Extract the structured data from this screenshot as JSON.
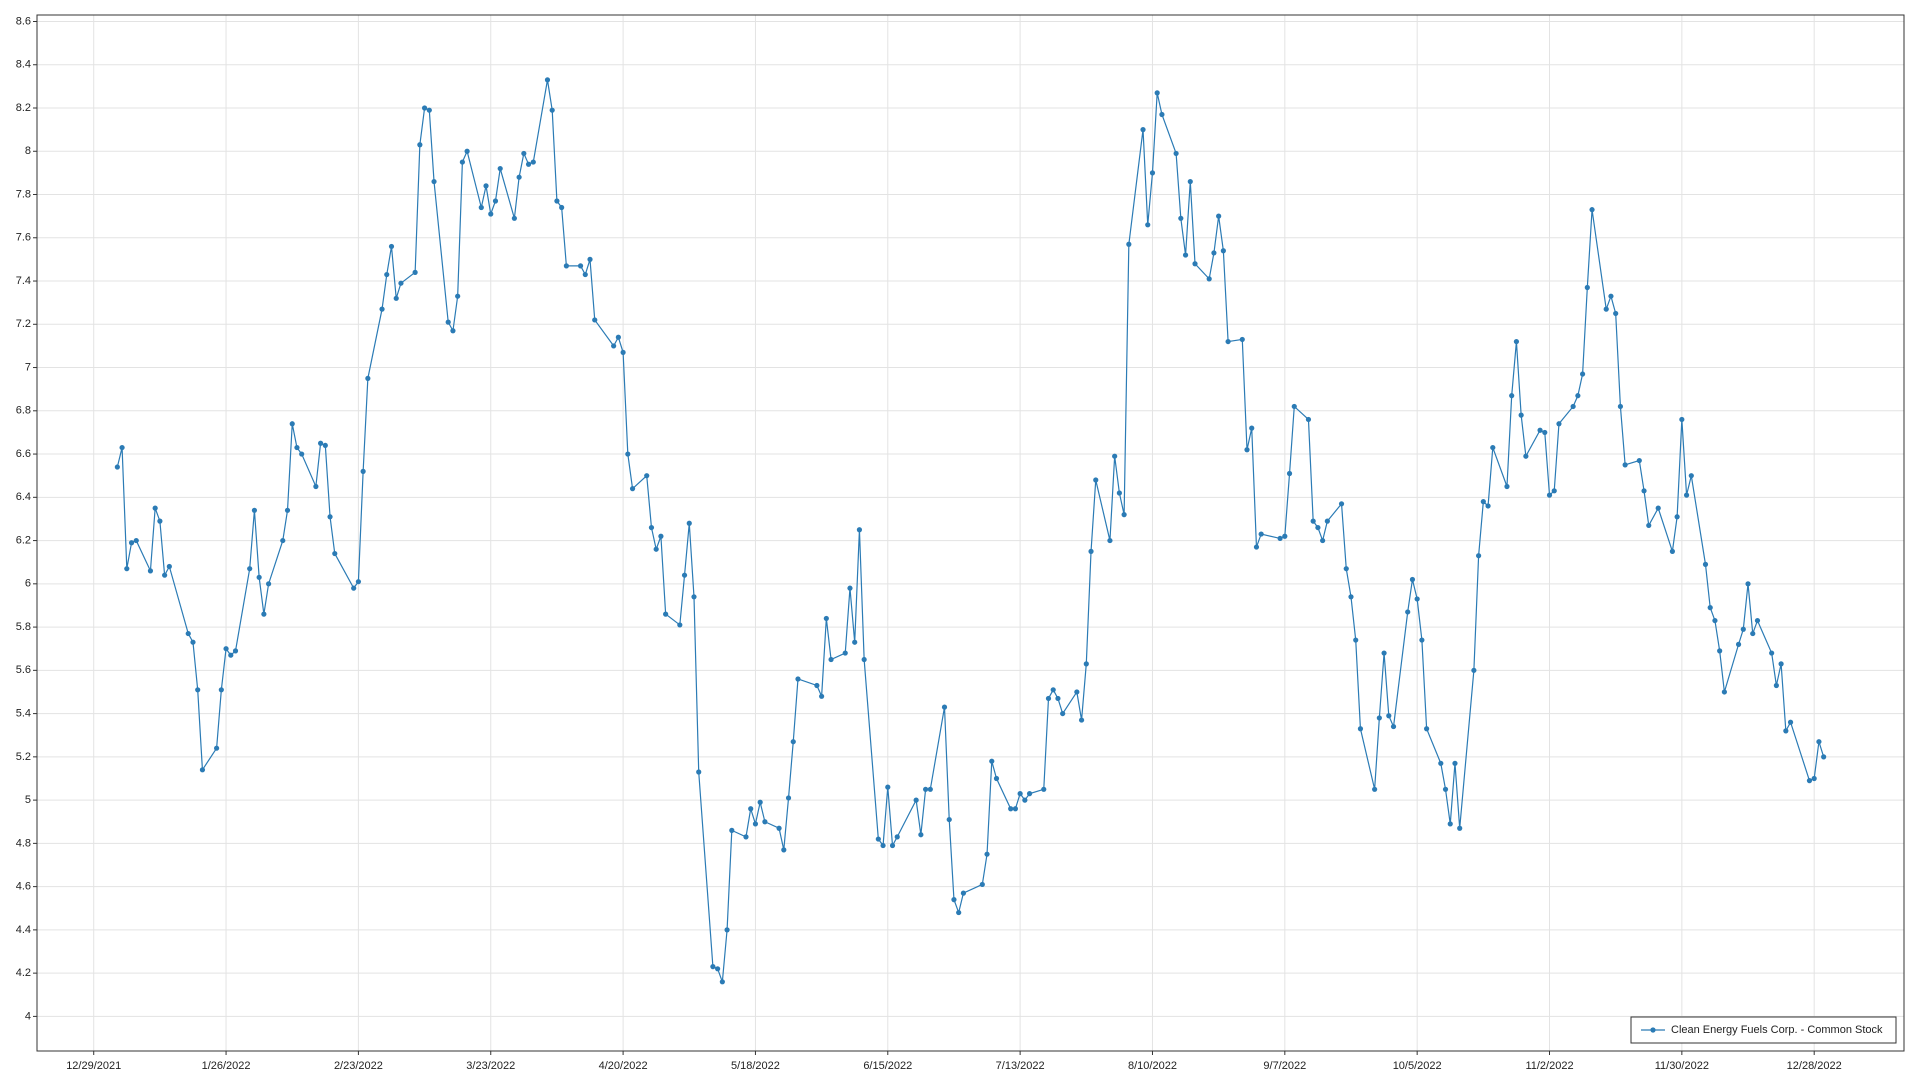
{
  "chart_data": {
    "type": "line",
    "x": [
      "1/3/2022",
      "1/4/2022",
      "1/5/2022",
      "1/6/2022",
      "1/7/2022",
      "1/10/2022",
      "1/11/2022",
      "1/12/2022",
      "1/13/2022",
      "1/14/2022",
      "1/18/2022",
      "1/19/2022",
      "1/20/2022",
      "1/21/2022",
      "1/24/2022",
      "1/25/2022",
      "1/26/2022",
      "1/27/2022",
      "1/28/2022",
      "1/31/2022",
      "2/1/2022",
      "2/2/2022",
      "2/3/2022",
      "2/4/2022",
      "2/7/2022",
      "2/8/2022",
      "2/9/2022",
      "2/10/2022",
      "2/11/2022",
      "2/14/2022",
      "2/15/2022",
      "2/16/2022",
      "2/17/2022",
      "2/18/2022",
      "2/22/2022",
      "2/23/2022",
      "2/24/2022",
      "2/25/2022",
      "2/28/2022",
      "3/1/2022",
      "3/2/2022",
      "3/3/2022",
      "3/4/2022",
      "3/7/2022",
      "3/8/2022",
      "3/9/2022",
      "3/10/2022",
      "3/11/2022",
      "3/14/2022",
      "3/15/2022",
      "3/16/2022",
      "3/17/2022",
      "3/18/2022",
      "3/21/2022",
      "3/22/2022",
      "3/23/2022",
      "3/24/2022",
      "3/25/2022",
      "3/28/2022",
      "3/29/2022",
      "3/30/2022",
      "3/31/2022",
      "4/1/2022",
      "4/4/2022",
      "4/5/2022",
      "4/6/2022",
      "4/7/2022",
      "4/8/2022",
      "4/11/2022",
      "4/12/2022",
      "4/13/2022",
      "4/14/2022",
      "4/18/2022",
      "4/19/2022",
      "4/20/2022",
      "4/21/2022",
      "4/22/2022",
      "4/25/2022",
      "4/26/2022",
      "4/27/2022",
      "4/28/2022",
      "4/29/2022",
      "5/2/2022",
      "5/3/2022",
      "5/4/2022",
      "5/5/2022",
      "5/6/2022",
      "5/9/2022",
      "5/10/2022",
      "5/11/2022",
      "5/12/2022",
      "5/13/2022",
      "5/16/2022",
      "5/17/2022",
      "5/18/2022",
      "5/19/2022",
      "5/20/2022",
      "5/23/2022",
      "5/24/2022",
      "5/25/2022",
      "5/26/2022",
      "5/27/2022",
      "5/31/2022",
      "6/1/2022",
      "6/2/2022",
      "6/3/2022",
      "6/6/2022",
      "6/7/2022",
      "6/8/2022",
      "6/9/2022",
      "6/10/2022",
      "6/13/2022",
      "6/14/2022",
      "6/15/2022",
      "6/16/2022",
      "6/17/2022",
      "6/21/2022",
      "6/22/2022",
      "6/23/2022",
      "6/24/2022",
      "6/27/2022",
      "6/28/2022",
      "6/29/2022",
      "6/30/2022",
      "7/1/2022",
      "7/5/2022",
      "7/6/2022",
      "7/7/2022",
      "7/8/2022",
      "7/11/2022",
      "7/12/2022",
      "7/13/2022",
      "7/14/2022",
      "7/15/2022",
      "7/18/2022",
      "7/19/2022",
      "7/20/2022",
      "7/21/2022",
      "7/22/2022",
      "7/25/2022",
      "7/26/2022",
      "7/27/2022",
      "7/28/2022",
      "7/29/2022",
      "8/1/2022",
      "8/2/2022",
      "8/3/2022",
      "8/4/2022",
      "8/5/2022",
      "8/8/2022",
      "8/9/2022",
      "8/10/2022",
      "8/11/2022",
      "8/12/2022",
      "8/15/2022",
      "8/16/2022",
      "8/17/2022",
      "8/18/2022",
      "8/19/2022",
      "8/22/2022",
      "8/23/2022",
      "8/24/2022",
      "8/25/2022",
      "8/26/2022",
      "8/29/2022",
      "8/30/2022",
      "8/31/2022",
      "9/1/2022",
      "9/2/2022",
      "9/6/2022",
      "9/7/2022",
      "9/8/2022",
      "9/9/2022",
      "9/12/2022",
      "9/13/2022",
      "9/14/2022",
      "9/15/2022",
      "9/16/2022",
      "9/19/2022",
      "9/20/2022",
      "9/21/2022",
      "9/22/2022",
      "9/23/2022",
      "9/26/2022",
      "9/27/2022",
      "9/28/2022",
      "9/29/2022",
      "9/30/2022",
      "10/3/2022",
      "10/4/2022",
      "10/5/2022",
      "10/6/2022",
      "10/7/2022",
      "10/10/2022",
      "10/11/2022",
      "10/12/2022",
      "10/13/2022",
      "10/14/2022",
      "10/17/2022",
      "10/18/2022",
      "10/19/2022",
      "10/20/2022",
      "10/21/2022",
      "10/24/2022",
      "10/25/2022",
      "10/26/2022",
      "10/27/2022",
      "10/28/2022",
      "10/31/2022",
      "11/1/2022",
      "11/2/2022",
      "11/3/2022",
      "11/4/2022",
      "11/7/2022",
      "11/8/2022",
      "11/9/2022",
      "11/10/2022",
      "11/11/2022",
      "11/14/2022",
      "11/15/2022",
      "11/16/2022",
      "11/17/2022",
      "11/18/2022",
      "11/21/2022",
      "11/22/2022",
      "11/23/2022",
      "11/25/2022",
      "11/28/2022",
      "11/29/2022",
      "11/30/2022",
      "12/1/2022",
      "12/2/2022",
      "12/5/2022",
      "12/6/2022",
      "12/7/2022",
      "12/8/2022",
      "12/9/2022",
      "12/12/2022",
      "12/13/2022",
      "12/14/2022",
      "12/15/2022",
      "12/16/2022",
      "12/19/2022",
      "12/20/2022",
      "12/21/2022",
      "12/22/2022",
      "12/23/2022",
      "12/27/2022",
      "12/28/2022",
      "12/29/2022",
      "12/30/2022"
    ],
    "series": [
      {
        "name": "Clean Energy Fuels Corp. - Common Stock",
        "color": "#2b7bb5",
        "values": [
          6.54,
          6.63,
          6.07,
          6.19,
          6.2,
          6.06,
          6.35,
          6.29,
          6.04,
          6.08,
          5.77,
          5.73,
          5.51,
          5.14,
          5.24,
          5.51,
          5.7,
          5.67,
          5.69,
          6.07,
          6.34,
          6.03,
          5.86,
          6.0,
          6.2,
          6.34,
          6.74,
          6.63,
          6.6,
          6.45,
          6.65,
          6.64,
          6.31,
          6.14,
          5.98,
          6.01,
          6.52,
          6.95,
          7.27,
          7.43,
          7.56,
          7.32,
          7.39,
          7.44,
          8.03,
          8.2,
          8.19,
          7.86,
          7.21,
          7.17,
          7.33,
          7.95,
          8.0,
          7.74,
          7.84,
          7.71,
          7.77,
          7.92,
          7.69,
          7.88,
          7.99,
          7.94,
          7.95,
          8.33,
          8.19,
          7.77,
          7.74,
          7.47,
          7.47,
          7.43,
          7.5,
          7.22,
          7.1,
          7.14,
          7.07,
          6.6,
          6.44,
          6.5,
          6.26,
          6.16,
          6.22,
          5.86,
          5.81,
          6.04,
          6.28,
          5.94,
          5.13,
          4.23,
          4.22,
          4.16,
          4.4,
          4.86,
          4.83,
          4.96,
          4.89,
          4.99,
          4.9,
          4.87,
          4.77,
          5.01,
          5.27,
          5.56,
          5.53,
          5.48,
          5.84,
          5.65,
          5.68,
          5.98,
          5.73,
          6.25,
          5.65,
          4.82,
          4.79,
          5.06,
          4.79,
          4.83,
          5.0,
          4.84,
          5.05,
          5.05,
          5.43,
          4.91,
          4.54,
          4.48,
          4.57,
          4.61,
          4.75,
          5.18,
          5.1,
          4.96,
          4.96,
          5.03,
          5.0,
          5.03,
          5.05,
          5.47,
          5.51,
          5.47,
          5.4,
          5.5,
          5.37,
          5.63,
          6.15,
          6.48,
          6.2,
          6.59,
          6.42,
          6.32,
          7.57,
          8.1,
          7.66,
          7.9,
          8.27,
          8.17,
          7.99,
          7.69,
          7.52,
          7.86,
          7.48,
          7.41,
          7.53,
          7.7,
          7.54,
          7.12,
          7.13,
          6.62,
          6.72,
          6.17,
          6.23,
          6.21,
          6.22,
          6.51,
          6.82,
          6.76,
          6.29,
          6.26,
          6.2,
          6.29,
          6.37,
          6.07,
          5.94,
          5.74,
          5.33,
          5.05,
          5.38,
          5.68,
          5.39,
          5.34,
          5.87,
          6.02,
          5.93,
          5.74,
          5.33,
          5.17,
          5.05,
          4.89,
          5.17,
          4.87,
          5.6,
          6.13,
          6.38,
          6.36,
          6.63,
          6.45,
          6.87,
          7.12,
          6.78,
          6.59,
          6.71,
          6.7,
          6.41,
          6.43,
          6.74,
          6.82,
          6.87,
          6.97,
          7.37,
          7.73,
          7.27,
          7.33,
          7.25,
          6.82,
          6.55,
          6.57,
          6.43,
          6.27,
          6.35,
          6.15,
          6.31,
          6.76,
          6.41,
          6.5,
          6.09,
          5.89,
          5.83,
          5.69,
          5.5,
          5.72,
          5.79,
          6.0,
          5.77,
          5.83,
          5.68,
          5.53,
          5.63,
          5.32,
          5.36,
          5.09,
          5.1,
          5.27,
          5.2
        ]
      }
    ],
    "xlim": [
      "12/17/2021",
      "1/16/2023"
    ],
    "xticks": [
      "12/29/2021",
      "1/26/2022",
      "2/23/2022",
      "3/23/2022",
      "4/20/2022",
      "5/18/2022",
      "6/15/2022",
      "7/13/2022",
      "8/10/2022",
      "9/7/2022",
      "10/5/2022",
      "11/2/2022",
      "11/30/2022",
      "12/28/2022"
    ],
    "ylim": [
      3.84,
      8.63
    ],
    "yticks": [
      4,
      4.2,
      4.4,
      4.6,
      4.8,
      5,
      5.2,
      5.4,
      5.6,
      5.8,
      6,
      6.2,
      6.4,
      6.6,
      6.8,
      7,
      7.2,
      7.4,
      7.6,
      7.8,
      8,
      8.2,
      8.4,
      8.6
    ],
    "grid": true,
    "legend": "lower right"
  }
}
